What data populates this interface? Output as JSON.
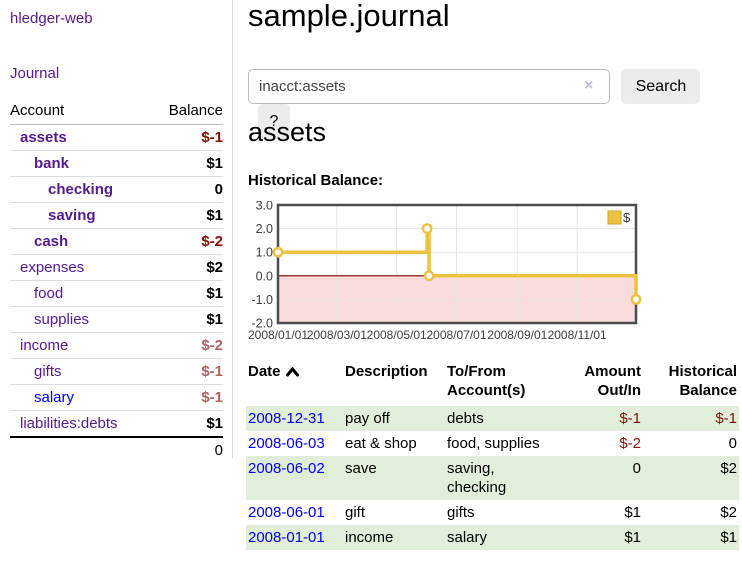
{
  "app": {
    "brand": "hledger-web"
  },
  "sidebar": {
    "journal_link": "Journal",
    "accounts_table": {
      "col_account": "Account",
      "col_balance": "Balance",
      "rows": [
        {
          "account": "assets",
          "balance": "$-1"
        },
        {
          "account": "bank",
          "balance": "$1"
        },
        {
          "account": "checking",
          "balance": "0"
        },
        {
          "account": "saving",
          "balance": "$1"
        },
        {
          "account": "cash",
          "balance": "$-2"
        },
        {
          "account": "expenses",
          "balance": "$2"
        },
        {
          "account": "food",
          "balance": "$1"
        },
        {
          "account": "supplies",
          "balance": "$1"
        },
        {
          "account": "income",
          "balance": "$-2"
        },
        {
          "account": "gifts",
          "balance": "$-1"
        },
        {
          "account": "salary",
          "balance": "$-1"
        },
        {
          "account": "liabilities:debts",
          "balance": "$1"
        }
      ],
      "total": "0"
    }
  },
  "main": {
    "title": "sample.journal",
    "search": {
      "value": "inacct:assets",
      "clear_icon": "×",
      "search_label": "Search",
      "help_label": "?"
    },
    "account_heading": "assets",
    "section_label": "Historical Balance:"
  },
  "register": {
    "headers": {
      "date": "Date",
      "description": "Description",
      "tofrom_line1": "To/From",
      "tofrom_line2": "Account(s)",
      "amount_line1": "Amount",
      "amount_line2": "Out/In",
      "balance_line1": "Historical",
      "balance_line2": "Balance"
    },
    "rows": [
      {
        "date": "2008-12-31",
        "description": "pay off",
        "accounts": "debts",
        "amount": "$-1",
        "balance": "$-1"
      },
      {
        "date": "2008-06-03",
        "description": "eat & shop",
        "accounts": "food, supplies",
        "amount": "$-2",
        "balance": "0"
      },
      {
        "date": "2008-06-02",
        "description": "save",
        "accounts": "saving, checking",
        "amount": "0",
        "balance": "$2"
      },
      {
        "date": "2008-06-01",
        "description": "gift",
        "accounts": "gifts",
        "amount": "$1",
        "balance": "$2"
      },
      {
        "date": "2008-01-01",
        "description": "income",
        "accounts": "salary",
        "amount": "$1",
        "balance": "$1"
      }
    ]
  },
  "chart_data": {
    "type": "line",
    "subtype": "step",
    "title": "Historical Balance:",
    "series": [
      {
        "name": "$",
        "color": "#edc240",
        "points": [
          {
            "date": "2008-01-01",
            "day": 0,
            "value": 1
          },
          {
            "date": "2008-06-01",
            "day": 152,
            "value": 2
          },
          {
            "date": "2008-06-03",
            "day": 154,
            "value": 0
          },
          {
            "date": "2008-12-31",
            "day": 365,
            "value": -1
          }
        ]
      }
    ],
    "x_range_days": [
      0,
      365
    ],
    "x_ticks": [
      {
        "day": 0,
        "label": "2008/01/01"
      },
      {
        "day": 60,
        "label": "2008/03/01"
      },
      {
        "day": 121,
        "label": "2008/05/01"
      },
      {
        "day": 182,
        "label": "2008/07/01"
      },
      {
        "day": 244,
        "label": "2008/09/01"
      },
      {
        "day": 305,
        "label": "2008/11/01"
      }
    ],
    "y_ticks": [
      3.0,
      2.0,
      1.0,
      0.0,
      -1.0,
      -2.0
    ],
    "y_range": [
      -2,
      3
    ],
    "grid": true,
    "legend_position": "top-right",
    "colors": {
      "negative_region_fill": "#fbdcdc",
      "zero_line": "#800000",
      "plot_border": "#4d4d4d",
      "grid_line": "#e4e4e4",
      "tick_label": "#3d3d3d"
    }
  }
}
